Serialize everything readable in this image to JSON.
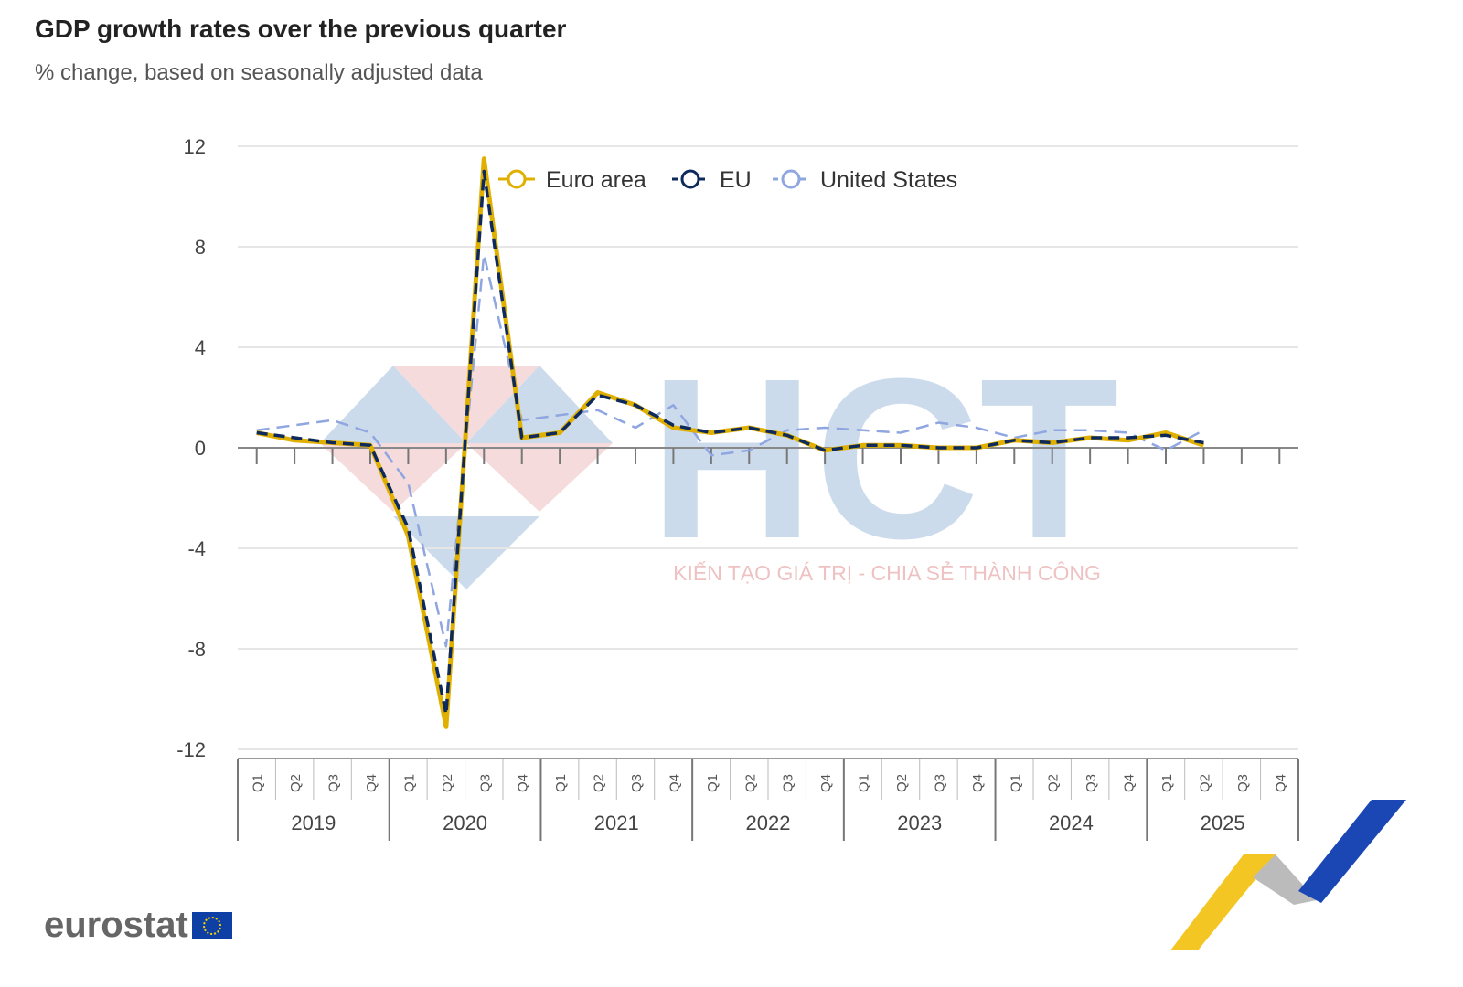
{
  "chart_data": {
    "type": "line",
    "title": "GDP growth rates over the previous quarter",
    "subtitle": "% change, based on seasonally adjusted data",
    "ylim": [
      -12,
      12
    ],
    "yticks": [
      12,
      8,
      4,
      0,
      -4,
      -8,
      -12
    ],
    "grid": true,
    "legend_position": "top-center",
    "quarters": [
      "Q1",
      "Q2",
      "Q3",
      "Q4"
    ],
    "years": [
      "2019",
      "2020",
      "2021",
      "2022",
      "2023",
      "2024",
      "2025"
    ],
    "series": [
      {
        "name": "Euro area",
        "color": "#e0b000",
        "values": [
          0.6,
          0.3,
          0.2,
          0.1,
          -3.5,
          -11.1,
          11.5,
          0.4,
          0.6,
          2.2,
          1.7,
          0.8,
          0.6,
          0.8,
          0.5,
          -0.1,
          0.1,
          0.1,
          0.0,
          0.0,
          0.3,
          0.2,
          0.4,
          0.3,
          0.6,
          0.1,
          null,
          null
        ]
      },
      {
        "name": "EU",
        "color": "#0e2a5c",
        "values": [
          0.6,
          0.4,
          0.2,
          0.1,
          -3.2,
          -10.6,
          11.0,
          0.4,
          0.6,
          2.1,
          1.7,
          0.9,
          0.6,
          0.8,
          0.5,
          -0.1,
          0.1,
          0.1,
          0.0,
          0.0,
          0.3,
          0.2,
          0.4,
          0.4,
          0.5,
          0.2,
          null,
          null
        ]
      },
      {
        "name": "United States",
        "color": "#8fa6e0",
        "values": [
          0.7,
          0.9,
          1.1,
          0.6,
          -1.4,
          -7.9,
          7.7,
          1.1,
          1.3,
          1.5,
          0.8,
          1.7,
          -0.3,
          -0.1,
          0.7,
          0.8,
          0.7,
          0.6,
          1.0,
          0.8,
          0.4,
          0.7,
          0.7,
          0.6,
          -0.1,
          0.7,
          null,
          null
        ]
      }
    ]
  },
  "watermark": {
    "brand": "HCT",
    "slogan": "KIẾN TẠO GIÁ TRỊ - CHIA SẺ THÀNH CÔNG"
  },
  "logo": {
    "text": "eurostat"
  }
}
